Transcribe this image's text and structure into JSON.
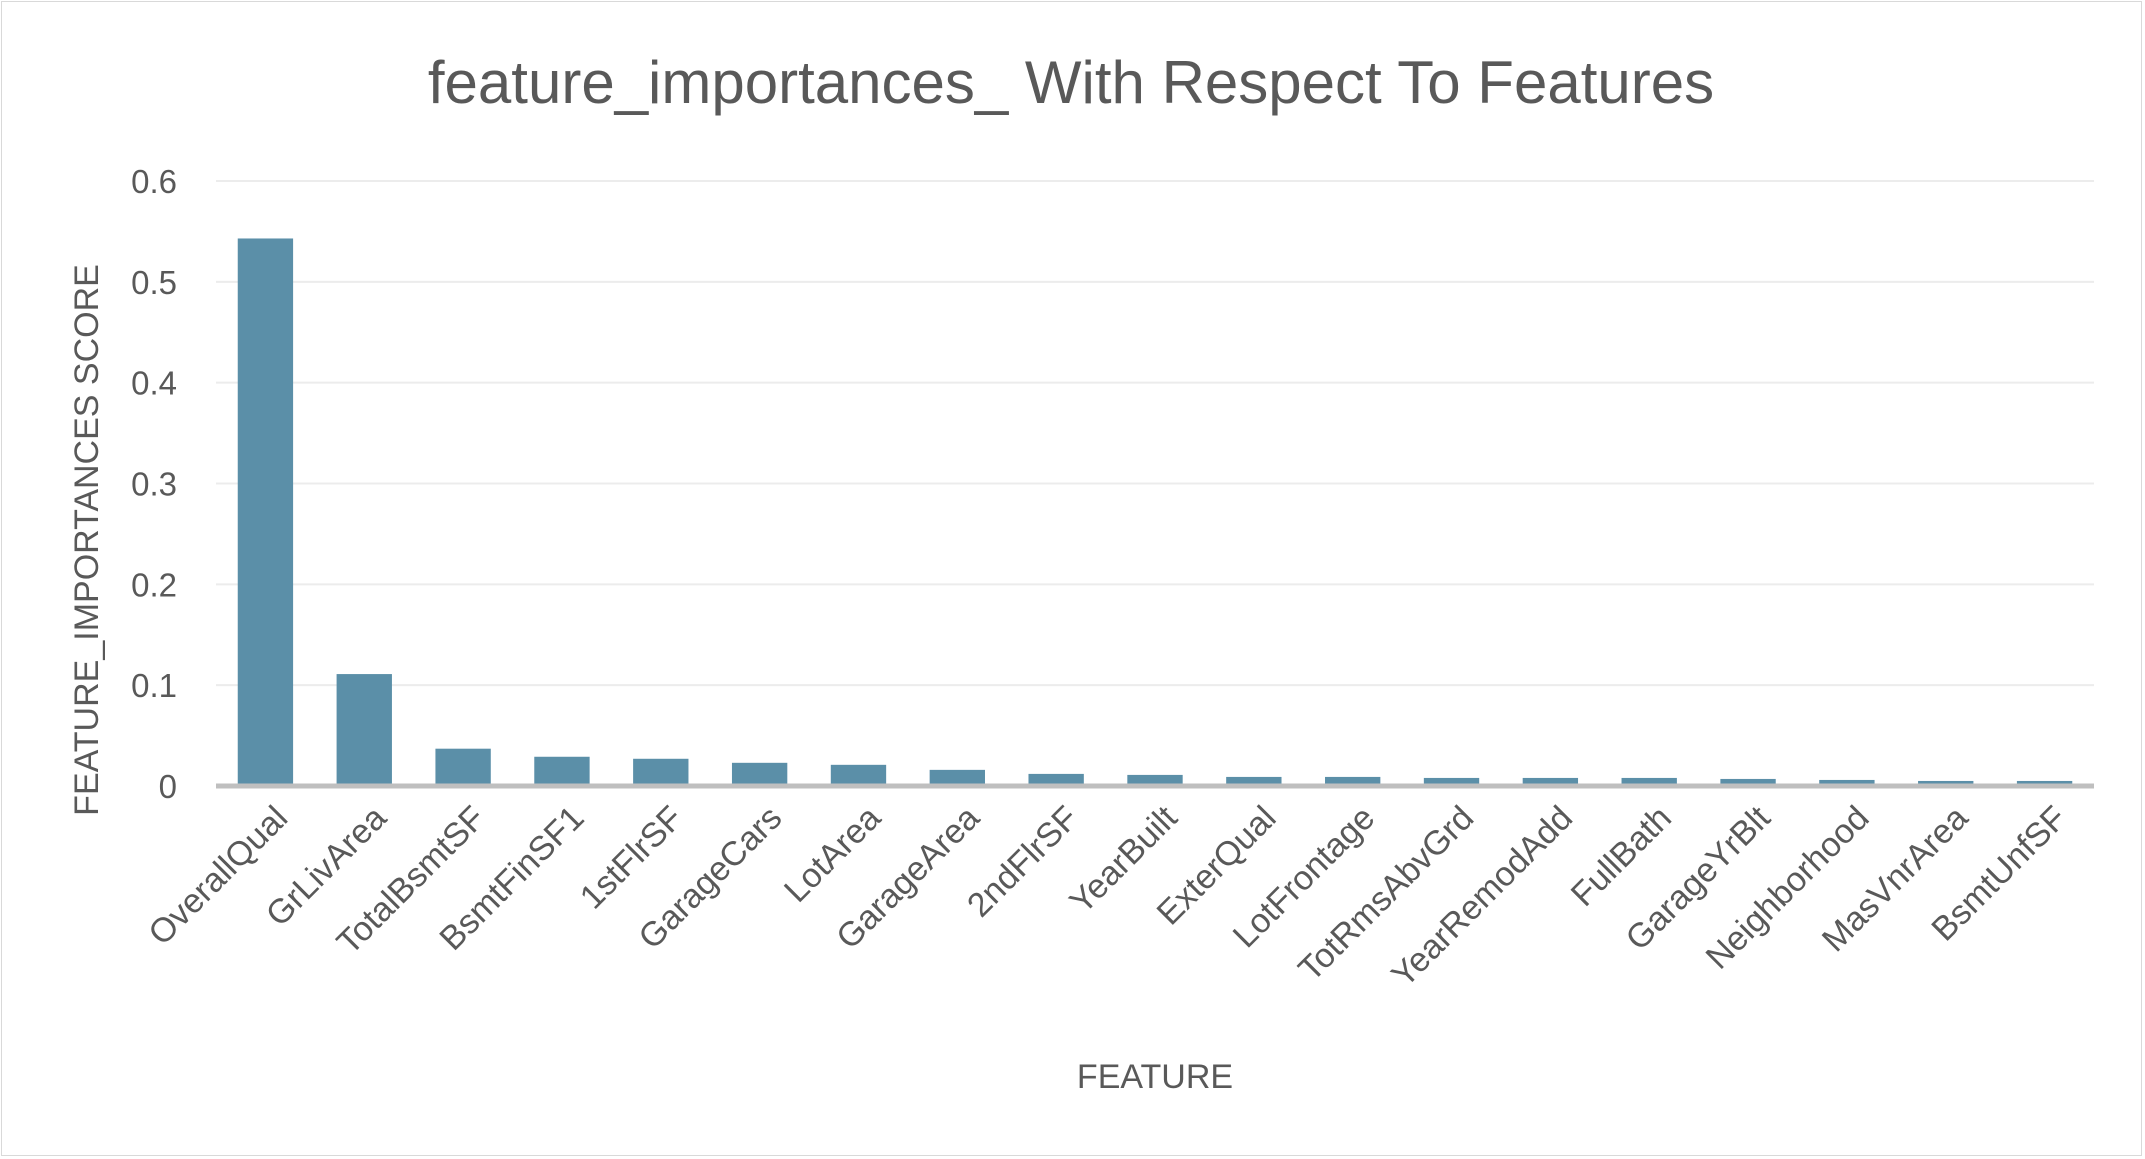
{
  "chart_data": {
    "type": "bar",
    "title": "feature_importances_ With Respect To Features",
    "xlabel": "FEATURE",
    "ylabel": "FEATURE_IMPORTANCES SCORE",
    "ylim": [
      0,
      0.6
    ],
    "yticks": [
      0,
      0.1,
      0.2,
      0.3,
      0.4,
      0.5,
      0.6
    ],
    "ytick_labels": [
      "0",
      "0.1",
      "0.2",
      "0.3",
      "0.4",
      "0.5",
      "0.6"
    ],
    "grid": true,
    "legend": "none",
    "categories": [
      "OverallQual",
      "GrLivArea",
      "TotalBsmtSF",
      "BsmtFinSF1",
      "1stFlrSF",
      "GarageCars",
      "LotArea",
      "GarageArea",
      "2ndFlrSF",
      "YearBuilt",
      "ExterQual",
      "LotFrontage",
      "TotRmsAbvGrd",
      "YearRemodAdd",
      "FullBath",
      "GarageYrBlt",
      "Neighborhood",
      "MasVnrArea",
      "BsmtUnfSF"
    ],
    "values": [
      0.543,
      0.111,
      0.037,
      0.029,
      0.027,
      0.023,
      0.021,
      0.016,
      0.012,
      0.011,
      0.009,
      0.009,
      0.008,
      0.008,
      0.008,
      0.007,
      0.006,
      0.005,
      0.005
    ],
    "bar_color": "#5b8fa8"
  }
}
